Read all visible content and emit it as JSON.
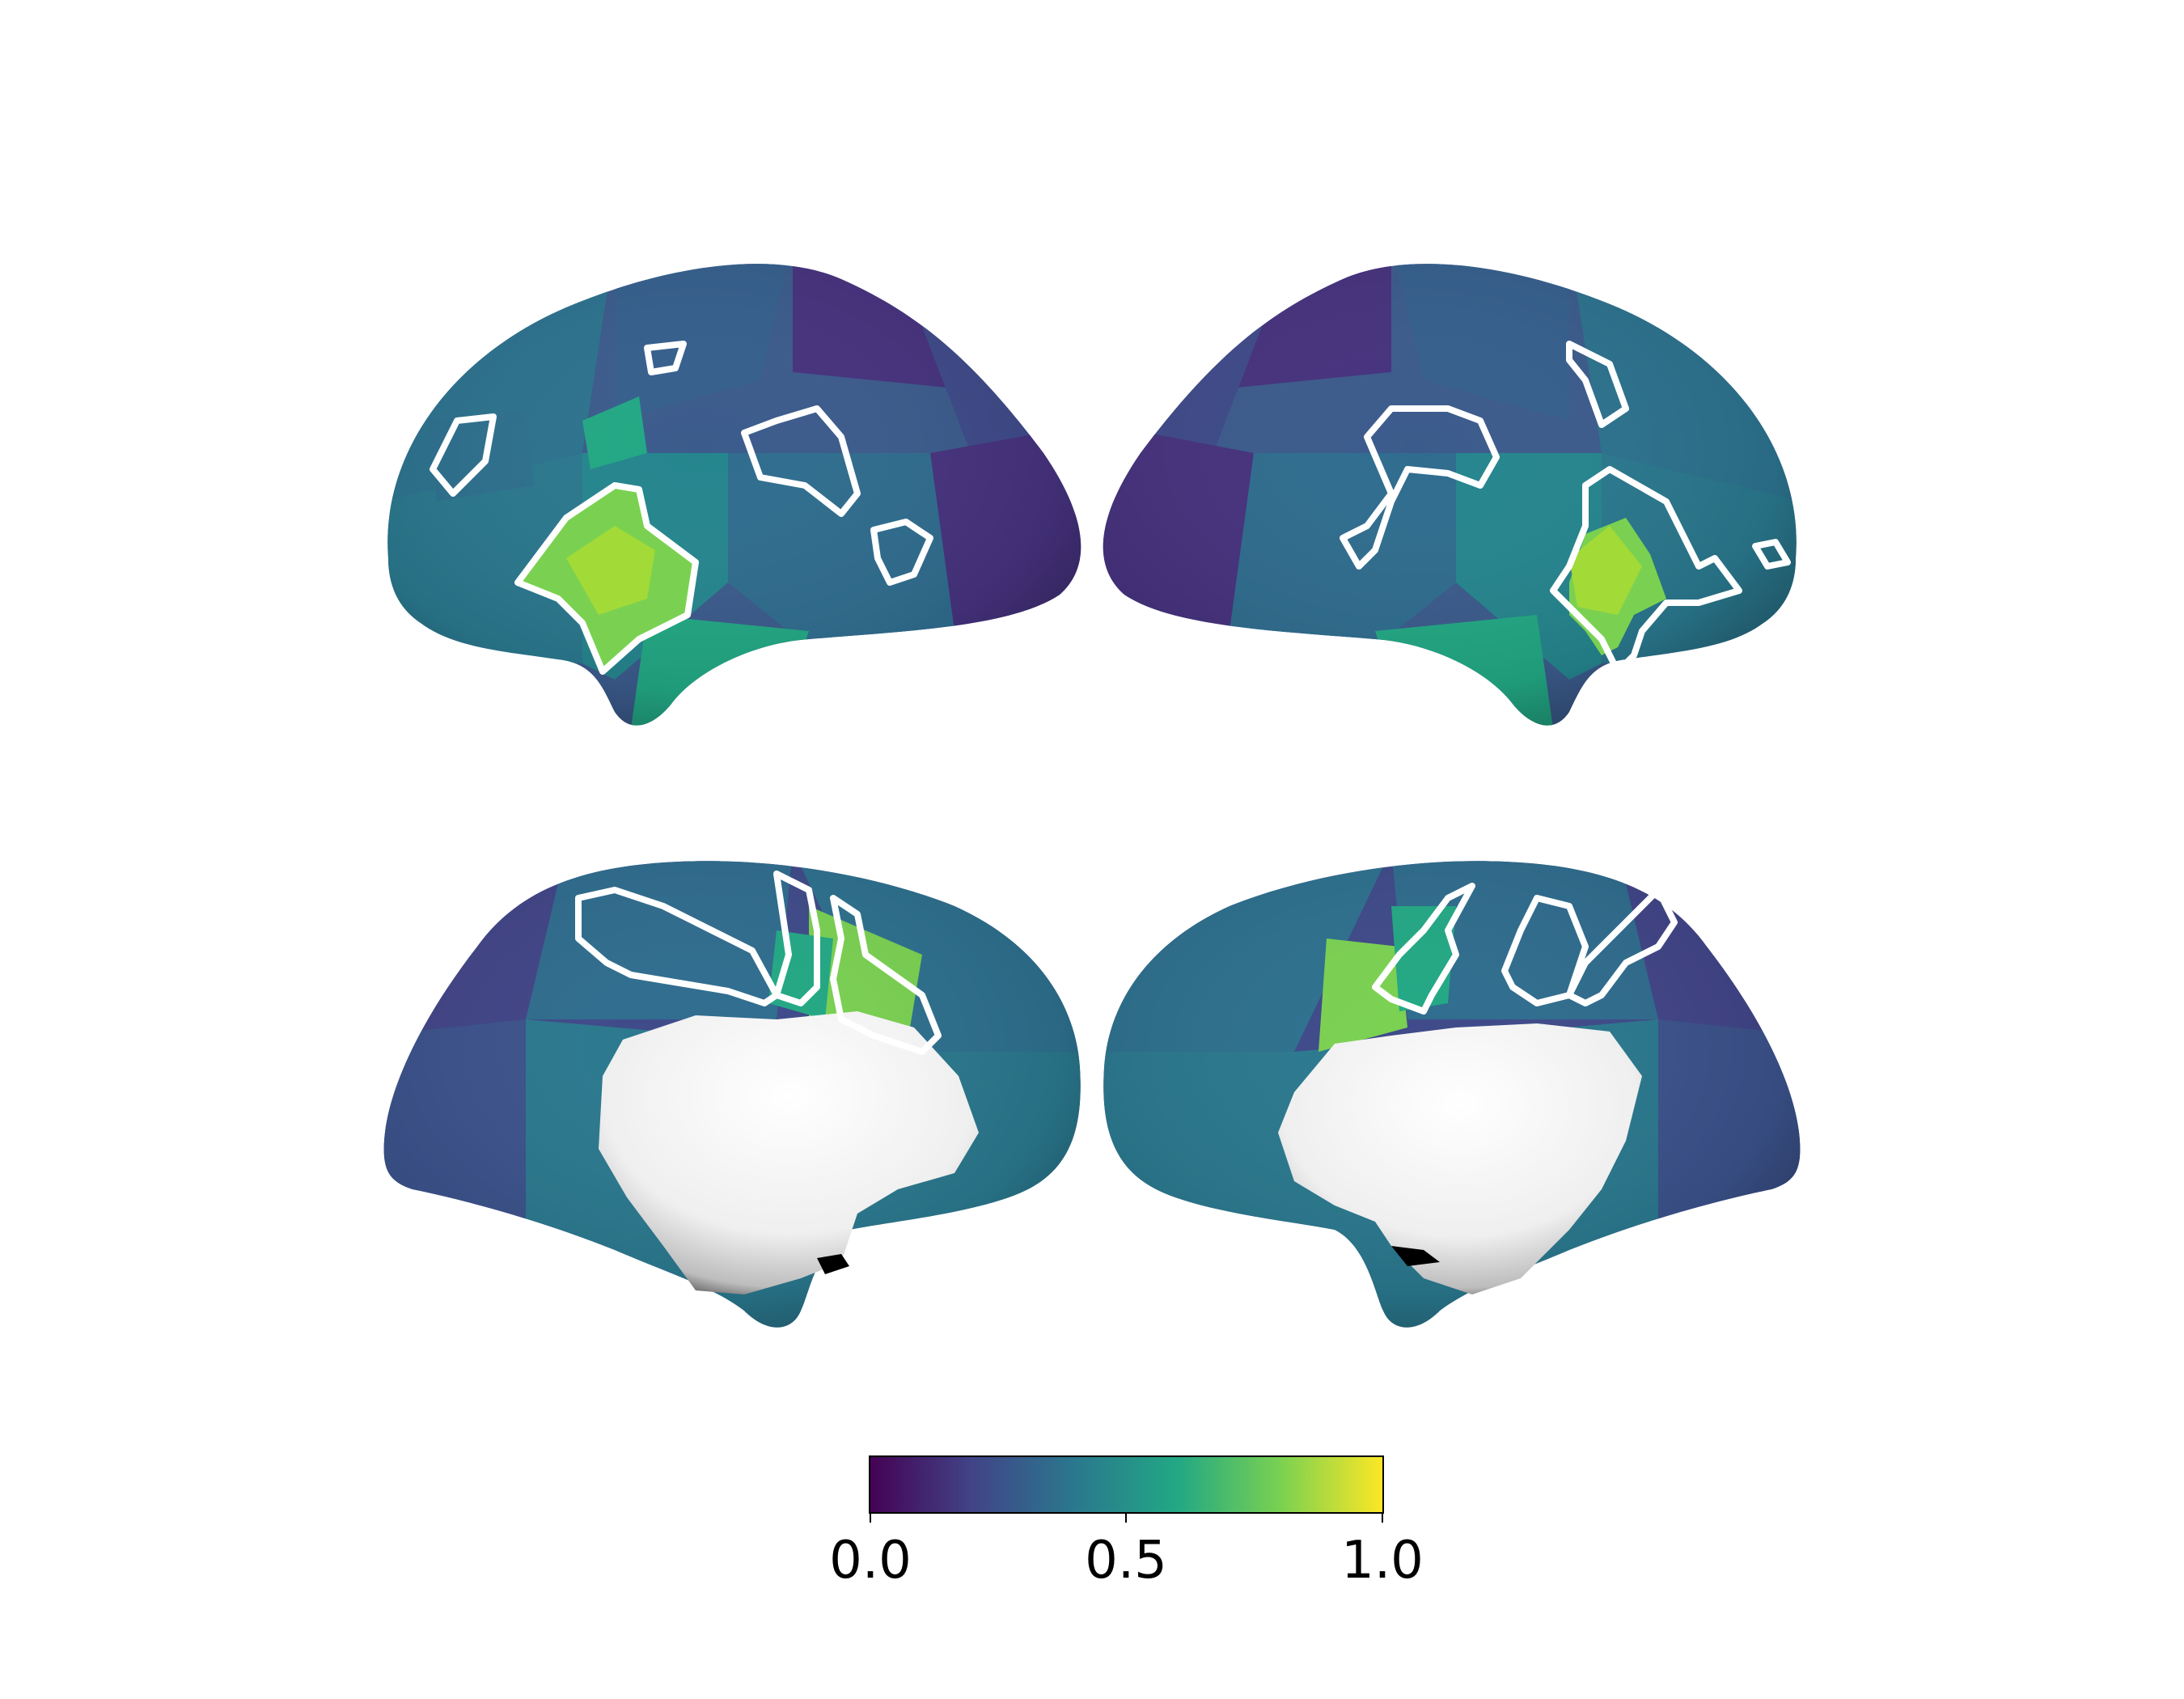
{
  "figure": {
    "views": [
      {
        "hemisphere": "left",
        "view": "lateral"
      },
      {
        "hemisphere": "right",
        "view": "lateral"
      },
      {
        "hemisphere": "left",
        "view": "medial"
      },
      {
        "hemisphere": "right",
        "view": "medial"
      }
    ],
    "outline_color": "#ffffff",
    "medial_wall_color": "#f2f2f2"
  },
  "colorbar": {
    "colormap": "viridis",
    "min": 0.0,
    "max": 1.0,
    "orientation": "horizontal",
    "placement": "bottom-center",
    "ticks": [
      "0.0",
      "0.5",
      "1.0"
    ],
    "colors": [
      "#440154",
      "#414487",
      "#2a788e",
      "#22a884",
      "#7ad151",
      "#fde725"
    ]
  }
}
